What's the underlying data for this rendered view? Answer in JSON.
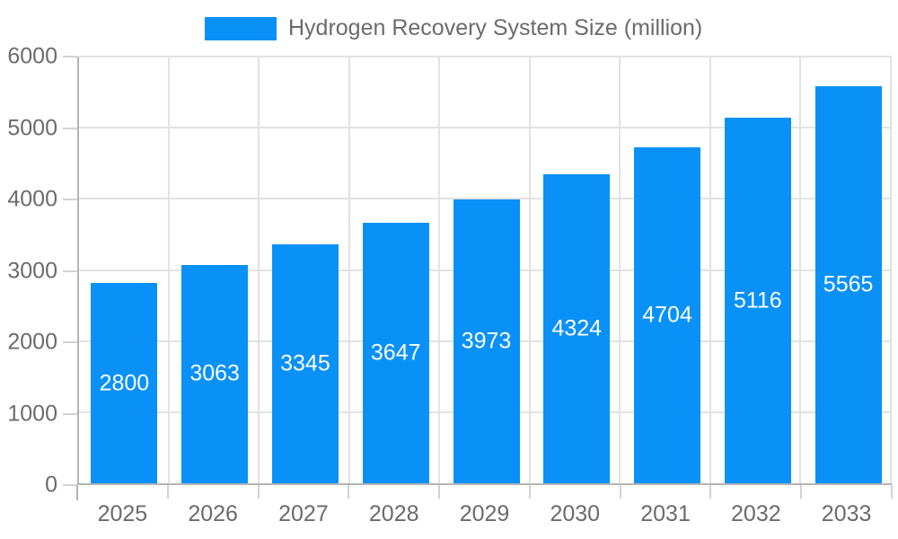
{
  "chart_data": {
    "type": "bar",
    "title": "Hydrogen Recovery System Size (million)",
    "categories": [
      "2025",
      "2026",
      "2027",
      "2028",
      "2029",
      "2030",
      "2031",
      "2032",
      "2033"
    ],
    "series": [
      {
        "name": "Hydrogen Recovery System Size (million)",
        "values": [
          2800,
          3063,
          3345,
          3647,
          3973,
          4324,
          4704,
          5116,
          5565
        ]
      }
    ],
    "values": [
      2800,
      3063,
      3345,
      3647,
      3973,
      4324,
      4704,
      5116,
      5565
    ],
    "bar_labels": [
      "2800",
      "3063",
      "3345",
      "3647",
      "3973",
      "4324",
      "4704",
      "5116",
      "5565"
    ],
    "bar_label_position": "inside-center",
    "xlabel": "",
    "ylabel": "",
    "ylim": [
      0,
      6000
    ],
    "yticks": [
      0,
      1000,
      2000,
      3000,
      4000,
      5000,
      6000
    ],
    "ytick_labels": [
      "0",
      "1000",
      "2000",
      "3000",
      "4000",
      "5000",
      "6000"
    ],
    "grid": true,
    "legend_position": "top"
  },
  "legend": {
    "label": "Hydrogen Recovery System Size (million)"
  },
  "colors": {
    "bar": "#0991f8",
    "bar_label": "#ffffff",
    "axis_line": "#b5b5b5",
    "grid_line": "#e2e2e2",
    "tick_mark": "#d2d2d2",
    "text": "#6b6b6b",
    "background": "#ffffff"
  }
}
